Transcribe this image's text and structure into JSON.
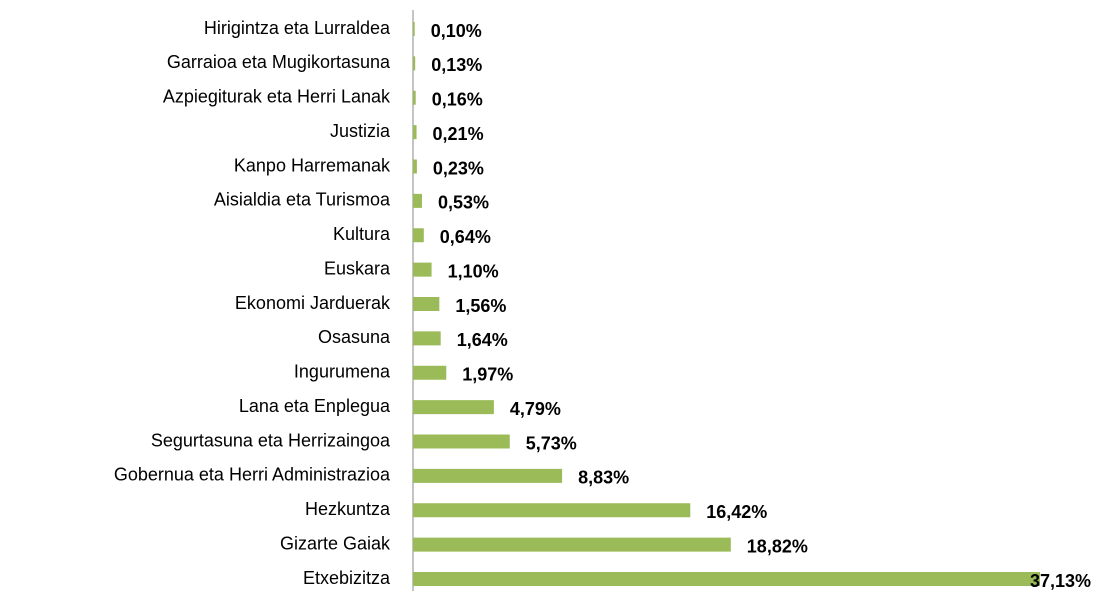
{
  "chart_data": {
    "type": "bar",
    "orientation": "horizontal",
    "categories": [
      "Hirigintza eta Lurraldea",
      "Garraioa eta Mugikortasuna",
      "Azpiegiturak eta Herri Lanak",
      "Justizia",
      "Kanpo Harremanak",
      "Aisialdia eta Turismoa",
      "Kultura",
      "Euskara",
      "Ekonomi Jarduerak",
      "Osasuna",
      "Ingurumena",
      "Lana eta Enplegua",
      "Segurtasuna eta Herrizaingoa",
      "Gobernua eta Herri Administrazioa",
      "Hezkuntza",
      "Gizarte Gaiak",
      "Etxebizitza"
    ],
    "values": [
      0.1,
      0.13,
      0.16,
      0.21,
      0.23,
      0.53,
      0.64,
      1.1,
      1.56,
      1.64,
      1.97,
      4.79,
      5.73,
      8.83,
      16.42,
      18.82,
      37.13
    ],
    "value_labels": [
      "0,10%",
      "0,13%",
      "0,16%",
      "0,21%",
      "0,23%",
      "0,53%",
      "0,64%",
      "1,10%",
      "1,56%",
      "1,64%",
      "1,97%",
      "4,79%",
      "5,73%",
      "8,83%",
      "16,42%",
      "18,82%",
      "37,13%"
    ],
    "color": "#9bbb59"
  }
}
